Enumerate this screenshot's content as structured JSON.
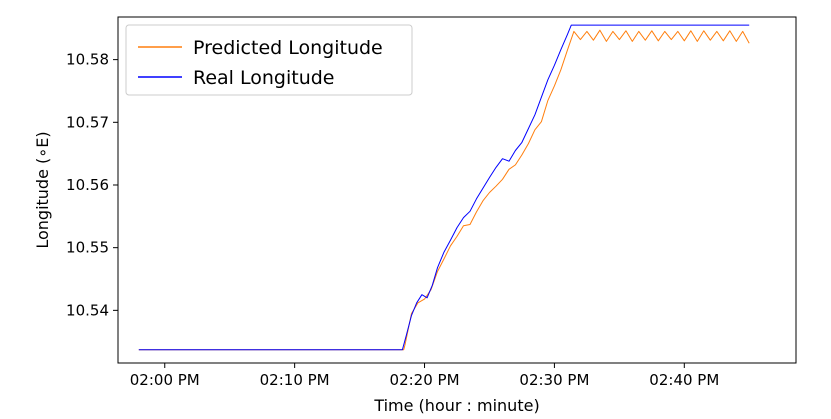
{
  "chart_data": {
    "type": "line",
    "xlabel": "Time (hour : minute)",
    "ylabel": "Longitude (∘E)",
    "x_ticks": [
      "02:00 PM",
      "02:10 PM",
      "02:20 PM",
      "02:30 PM",
      "02:40 PM"
    ],
    "x_tick_minutes": [
      0,
      10,
      20,
      30,
      40
    ],
    "xlim": [
      -3.6,
      48.6
    ],
    "y_ticks": [
      "10.54",
      "10.55",
      "10.56",
      "10.57",
      "10.58"
    ],
    "y_tick_values": [
      10.54,
      10.55,
      10.56,
      10.57,
      10.58
    ],
    "ylim": [
      10.5316,
      10.5868
    ],
    "x_unit": "minutes after 02:00 PM",
    "grid": false,
    "legend_position": "top-left",
    "series": [
      {
        "name": "Predicted Longitude",
        "color": "#ff7f0e",
        "x": [
          -2.0,
          18.4,
          18.5,
          19.0,
          19.5,
          20.0,
          20.5,
          21.0,
          21.5,
          22.0,
          22.5,
          23.0,
          23.5,
          24.0,
          24.5,
          25.0,
          25.5,
          26.0,
          26.5,
          27.0,
          27.5,
          28.0,
          28.5,
          29.0,
          29.5,
          30.0,
          30.5,
          31.0,
          31.5,
          32.0,
          32.5,
          33.0,
          33.5,
          34.0,
          34.5,
          35.0,
          35.5,
          36.0,
          36.5,
          37.0,
          37.5,
          38.0,
          38.5,
          39.0,
          39.5,
          40.0,
          40.5,
          41.0,
          41.5,
          42.0,
          42.5,
          43.0,
          43.5,
          44.0,
          44.5,
          45.0
        ],
        "values": [
          10.5337,
          10.5337,
          10.5345,
          10.5395,
          10.5412,
          10.5418,
          10.5433,
          10.5462,
          10.5482,
          10.5503,
          10.5518,
          10.5535,
          10.5537,
          10.5557,
          10.5575,
          10.5588,
          10.5598,
          10.5609,
          10.5625,
          10.5632,
          10.5648,
          10.5666,
          10.5688,
          10.5701,
          10.5735,
          10.5758,
          10.5784,
          10.5815,
          10.5845,
          10.5832,
          10.5845,
          10.5831,
          10.5847,
          10.5829,
          10.5845,
          10.5832,
          10.5846,
          10.5829,
          10.5845,
          10.5831,
          10.5846,
          10.583,
          10.5845,
          10.5832,
          10.5845,
          10.583,
          10.5846,
          10.5829,
          10.5846,
          10.5831,
          10.5845,
          10.583,
          10.5846,
          10.5829,
          10.5845,
          10.5826
        ]
      },
      {
        "name": "Real Longitude",
        "color": "#0000ff",
        "x": [
          -2.0,
          18.3,
          18.6,
          19.0,
          19.4,
          19.8,
          20.2,
          20.6,
          21.0,
          21.5,
          22.0,
          22.5,
          23.0,
          23.5,
          24.0,
          24.5,
          25.0,
          25.5,
          26.0,
          26.5,
          27.0,
          27.5,
          28.0,
          28.5,
          29.0,
          29.5,
          30.0,
          30.5,
          31.0,
          31.3,
          45.0
        ],
        "values": [
          10.5337,
          10.5337,
          10.536,
          10.5392,
          10.5412,
          10.5425,
          10.542,
          10.544,
          10.5468,
          10.5493,
          10.5512,
          10.5532,
          10.5548,
          10.5558,
          10.5578,
          10.5595,
          10.5612,
          10.5628,
          10.5642,
          10.5638,
          10.5655,
          10.5668,
          10.569,
          10.5712,
          10.574,
          10.5768,
          10.5791,
          10.5816,
          10.584,
          10.5855,
          10.5855
        ]
      }
    ]
  }
}
